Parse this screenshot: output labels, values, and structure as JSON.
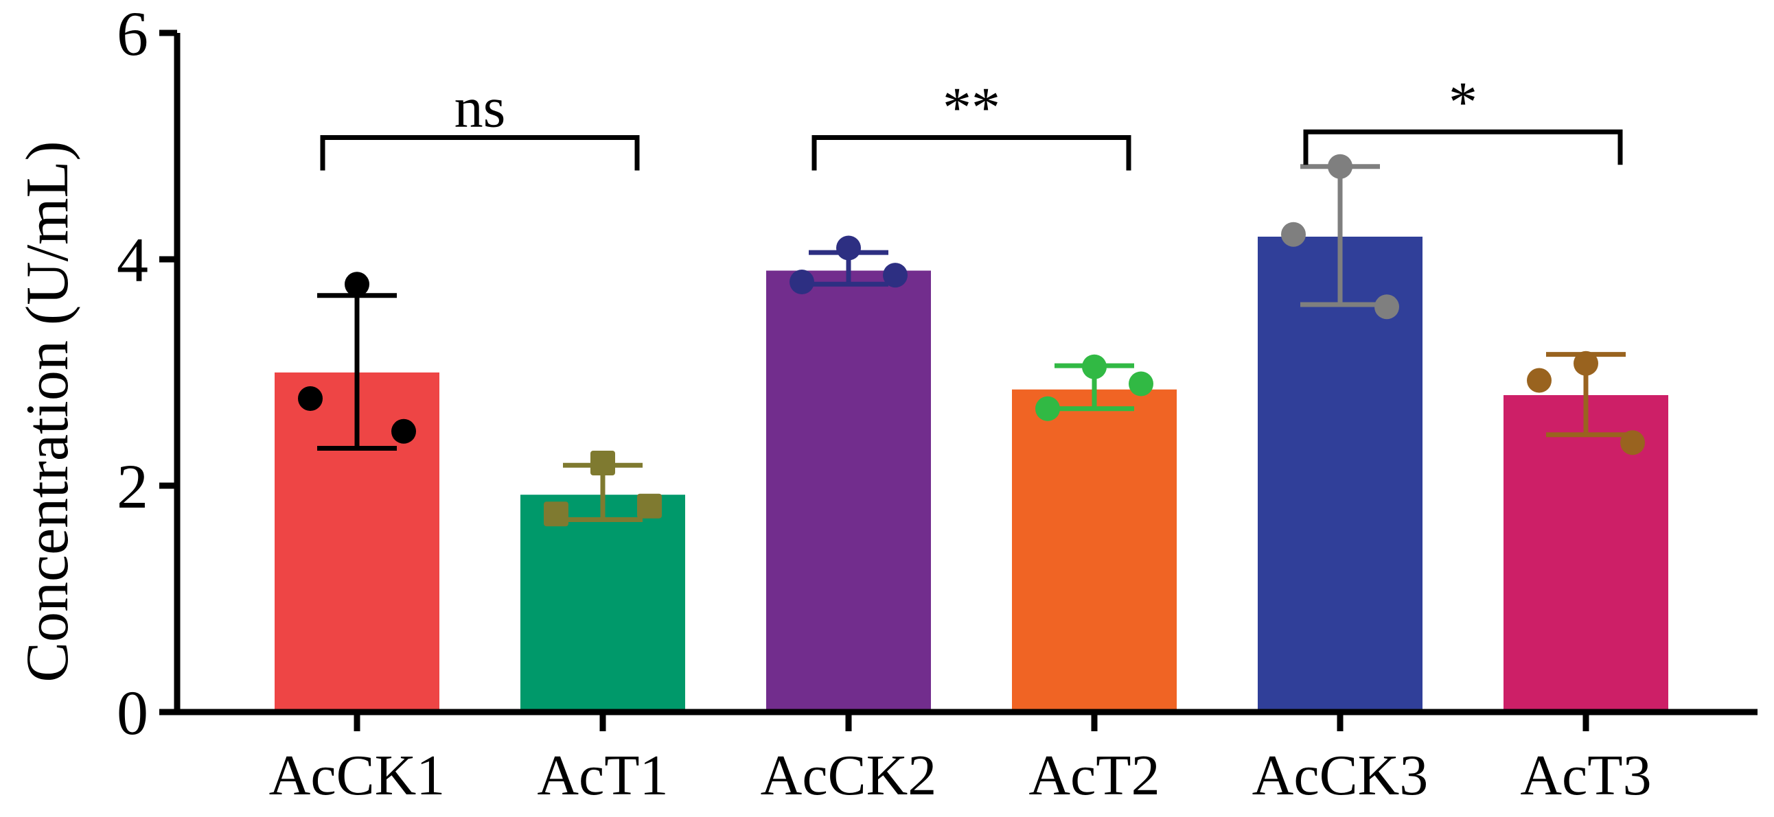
{
  "chart_data": {
    "type": "bar",
    "title": "",
    "xlabel": "",
    "ylabel": "Concentration (U/mL)",
    "ylim": [
      0,
      6
    ],
    "yticks": [
      0,
      2,
      4,
      6
    ],
    "grid": false,
    "categories": [
      "AcCK1",
      "AcT1",
      "AcCK2",
      "AcT2",
      "AcCK3",
      "AcT3"
    ],
    "values": [
      3.0,
      1.92,
      3.9,
      2.85,
      4.2,
      2.8
    ],
    "error_low": [
      2.33,
      1.7,
      3.78,
      2.68,
      3.6,
      2.45
    ],
    "error_high": [
      3.68,
      2.18,
      4.06,
      3.06,
      4.82,
      3.16
    ],
    "points": [
      [
        3.78,
        2.77,
        2.48
      ],
      [
        2.2,
        1.75,
        1.82
      ],
      [
        4.1,
        3.8,
        3.86
      ],
      [
        3.05,
        2.68,
        2.9
      ],
      [
        4.82,
        4.22,
        3.58
      ],
      [
        3.08,
        2.93,
        2.38
      ]
    ],
    "bar_colors": [
      "#EE4545",
      "#00996A",
      "#722D8D",
      "#F06424",
      "#303F99",
      "#CD1F67"
    ],
    "point_colors": [
      "#000000",
      "#7F7A30",
      "#2D2F82",
      "#31B944",
      "#7F7F7F",
      "#99631F"
    ],
    "point_shapes": [
      "circle",
      "square",
      "circle",
      "circle",
      "circle",
      "circle"
    ],
    "significance": [
      {
        "from": 0,
        "to": 1,
        "label": "ns",
        "y": 5.5
      },
      {
        "from": 2,
        "to": 3,
        "label": "**",
        "y": 5.5
      },
      {
        "from": 4,
        "to": 5,
        "label": "*",
        "y": 5.55
      }
    ]
  }
}
